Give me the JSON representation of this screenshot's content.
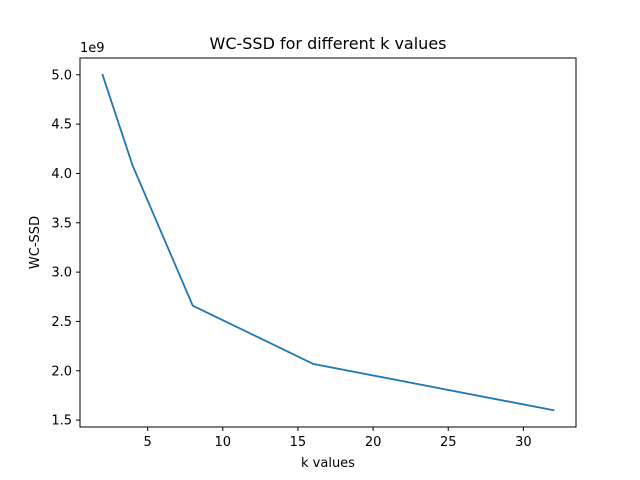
{
  "chart_data": {
    "type": "line",
    "title": "WC-SSD for different k values",
    "xlabel": "k values",
    "ylabel": "WC-SSD",
    "y_offset_label": "1e9",
    "xlim": [
      0.5,
      33.5
    ],
    "ylim": [
      1.43,
      5.17
    ],
    "x_ticks": [
      5,
      10,
      15,
      20,
      25,
      30
    ],
    "x_tick_labels": [
      "5",
      "10",
      "15",
      "20",
      "25",
      "30"
    ],
    "y_ticks": [
      1.5,
      2.0,
      2.5,
      3.0,
      3.5,
      4.0,
      4.5,
      5.0
    ],
    "y_tick_labels": [
      "1.5",
      "2.0",
      "2.5",
      "3.0",
      "3.5",
      "4.0",
      "4.5",
      "5.0"
    ],
    "grid": false,
    "series": [
      {
        "x": [
          2,
          4,
          8,
          16,
          32
        ],
        "y": [
          5.0,
          4.08,
          2.66,
          2.07,
          1.6
        ],
        "color": "#1f77b4"
      }
    ]
  }
}
